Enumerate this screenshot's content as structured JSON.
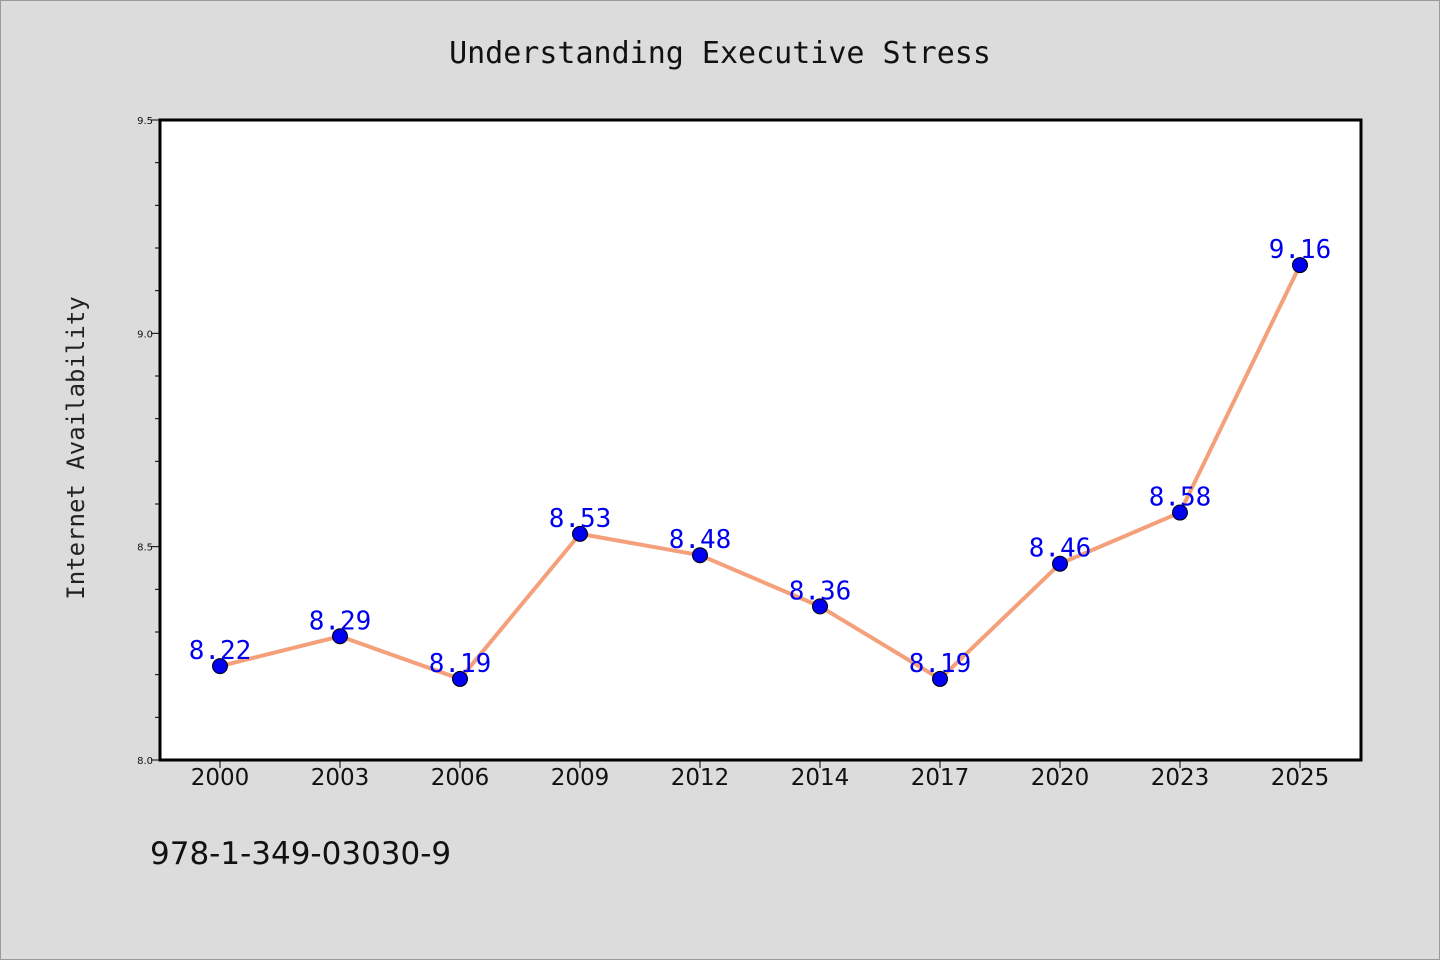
{
  "chart_data": {
    "type": "line",
    "title": "Understanding Executive Stress",
    "xlabel": "",
    "ylabel": "Internet Availability",
    "categories": [
      "2000",
      "2003",
      "2006",
      "2009",
      "2012",
      "2014",
      "2017",
      "2020",
      "2023",
      "2025"
    ],
    "series": [
      {
        "values": [
          8.22,
          8.29,
          8.19,
          8.53,
          8.48,
          8.36,
          8.19,
          8.46,
          8.58,
          9.16
        ],
        "value_labels": [
          "8.22",
          "8.29",
          "8.19",
          "8.53",
          "8.48",
          "8.36",
          "8.19",
          "8.46",
          "8.58",
          "9.16"
        ],
        "line_color": "#f4a07a",
        "marker_color": "#0000ee"
      }
    ],
    "ylim": [
      8.0,
      9.5
    ],
    "yticks": [
      "8.0",
      "8.5",
      "9.0",
      "9.5"
    ],
    "grid": false,
    "legend": "none"
  },
  "footer_text": "978-1-349-03030-9",
  "colors": {
    "background": "#dcdcdc",
    "plot_area": "#ffffff",
    "label_color": "#0000ee"
  }
}
